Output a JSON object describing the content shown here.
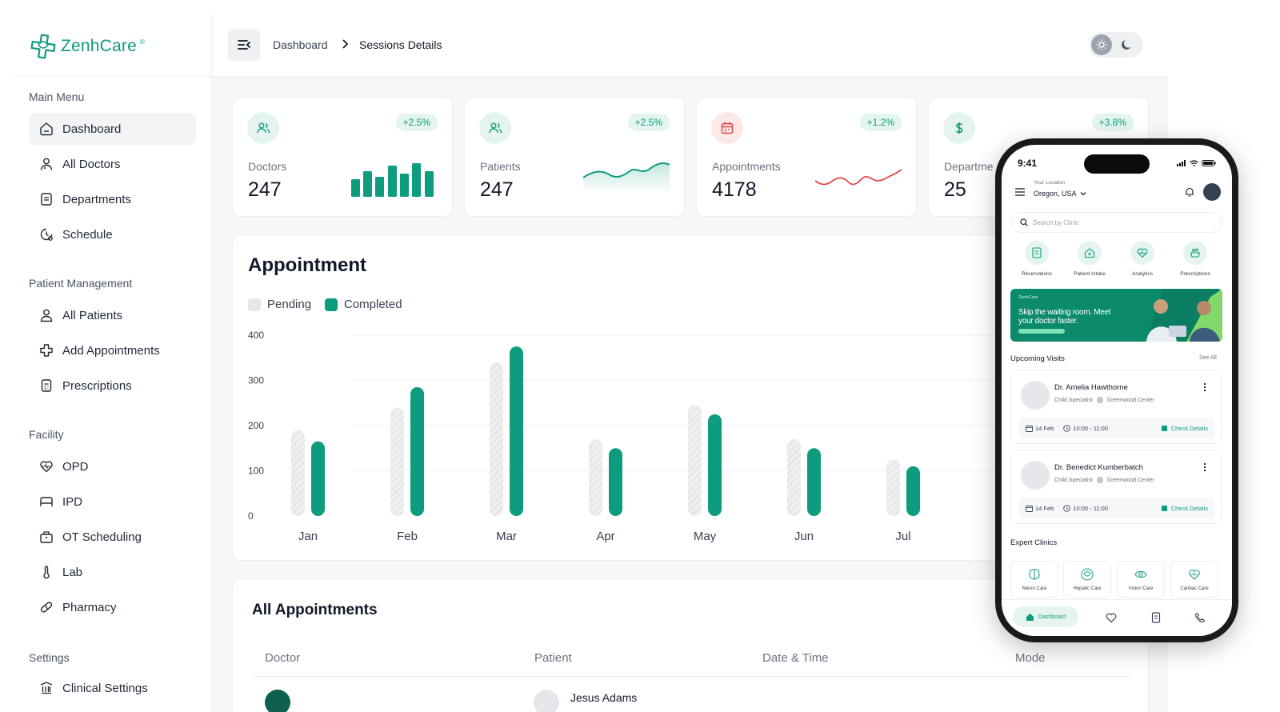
{
  "app": {
    "name": "ZenhCare"
  },
  "sidebar": {
    "sections": [
      {
        "title": "Main Menu",
        "items": [
          {
            "label": "Dashboard",
            "icon": "home-icon",
            "active": true
          },
          {
            "label": "All Doctors",
            "icon": "doctor-icon"
          },
          {
            "label": "Departments",
            "icon": "department-icon"
          },
          {
            "label": "Schedule",
            "icon": "schedule-icon"
          }
        ]
      },
      {
        "title": "Patient Management",
        "items": [
          {
            "label": "All Patients",
            "icon": "patient-icon"
          },
          {
            "label": "Add Appointments",
            "icon": "add-icon"
          },
          {
            "label": "Prescriptions",
            "icon": "prescription-icon"
          }
        ]
      },
      {
        "title": "Facility",
        "items": [
          {
            "label": "OPD",
            "icon": "heart-icon"
          },
          {
            "label": "IPD",
            "icon": "bed-icon"
          },
          {
            "label": "OT Scheduling",
            "icon": "ot-icon"
          },
          {
            "label": "Lab",
            "icon": "thermometer-icon"
          },
          {
            "label": "Pharmacy",
            "icon": "pill-icon"
          }
        ]
      },
      {
        "title": "Settings",
        "items": [
          {
            "label": "Clinical Settings",
            "icon": "building-icon"
          }
        ]
      }
    ]
  },
  "header": {
    "breadcrumb": [
      "Dashboard",
      "Sessions Details"
    ]
  },
  "stats": [
    {
      "label": "Doctors",
      "value": "247",
      "change": "+2.5%",
      "icon": "users-icon",
      "accent": "#0e9c7e",
      "spark": "bars"
    },
    {
      "label": "Patients",
      "value": "247",
      "change": "+2.5%",
      "icon": "users-icon",
      "accent": "#0e9c7e",
      "spark": "area"
    },
    {
      "label": "Appointments",
      "value": "4178",
      "change": "+1.2%",
      "icon": "calendar-icon",
      "accent": "#e04848",
      "spark": "line"
    },
    {
      "label": "Departme",
      "value": "25",
      "change": "+3.8%",
      "icon": "dollar-icon",
      "accent": "#0e9c7e",
      "spark": "none"
    }
  ],
  "appointment": {
    "title": "Appointment",
    "legend": [
      "Pending",
      "Completed"
    ],
    "colors": {
      "pending": "#e5e7eb",
      "completed": "#0e9c7e"
    }
  },
  "chart_data": {
    "type": "bar",
    "title": "Appointment",
    "categories": [
      "Jan",
      "Feb",
      "Mar",
      "Apr",
      "May",
      "Jun",
      "Jul"
    ],
    "series": [
      {
        "name": "Pending",
        "values": [
          190,
          240,
          340,
          170,
          245,
          170,
          125
        ]
      },
      {
        "name": "Completed",
        "values": [
          165,
          285,
          375,
          150,
          225,
          150,
          110
        ]
      }
    ],
    "yticks": [
      0,
      100,
      200,
      300,
      400
    ],
    "ylim": [
      0,
      400
    ],
    "xlabel": "",
    "ylabel": "",
    "grid": true,
    "legend_position": "top-left"
  },
  "all_appointments": {
    "title": "All Appointments",
    "columns": [
      "Doctor",
      "Patient",
      "Date & Time",
      "Mode"
    ],
    "rows": [
      {
        "patient": "Jesus Adams"
      }
    ]
  },
  "phone": {
    "time": "9:41",
    "location_label": "Your Location",
    "location": "Oregon, USA",
    "search_placeholder": "Search by Clinic",
    "quick_actions": [
      {
        "label": "Reservations",
        "icon": "reservation-icon"
      },
      {
        "label": "Patient Intake",
        "icon": "intake-icon"
      },
      {
        "label": "Analytics",
        "icon": "analytics-icon"
      },
      {
        "label": "Prescriptions",
        "icon": "rx-icon"
      }
    ],
    "banner": {
      "brand": "ZenhCare",
      "text": "Skip the waiting room. Meet your doctor faster."
    },
    "upcoming_title": "Upcoming Visits",
    "see_all": "See All",
    "visits": [
      {
        "doctor": "Dr. Amelia Hawthorne",
        "specialty": "Child Specialist",
        "center": "Greenwood Center",
        "date": "14 Feb",
        "time": "10:00 - 11:00",
        "action": "Check Details"
      },
      {
        "doctor": "Dr. Benedict Kumberbatch",
        "specialty": "Child Specialist",
        "center": "Greenwood Center",
        "date": "14 Feb",
        "time": "10:00 - 11:00",
        "action": "Check Details"
      }
    ],
    "clinics_title": "Expert Clinics",
    "clinics": [
      {
        "label": "Neuro Care",
        "icon": "brain-icon"
      },
      {
        "label": "Hepatic Care",
        "icon": "liver-icon"
      },
      {
        "label": "Vision Care",
        "icon": "eye-icon"
      },
      {
        "label": "Cardiac Care",
        "icon": "heart-icon"
      }
    ],
    "tabs": {
      "active": "Dashboard"
    }
  }
}
